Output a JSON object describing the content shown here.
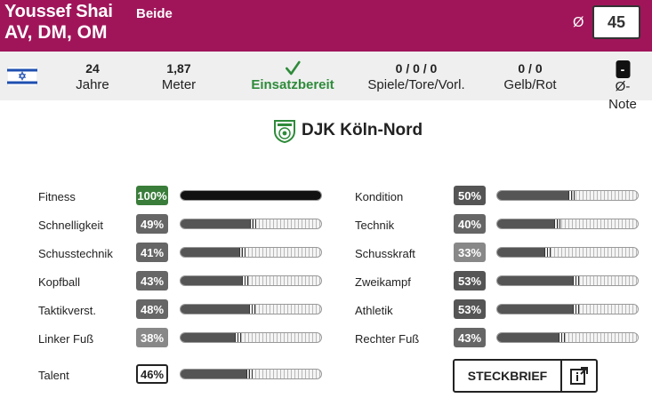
{
  "header": {
    "name": "Youssef Shai",
    "foot": "Beide",
    "positions": "AV, DM, OM",
    "avg_symbol": "Ø",
    "avg_value": "45"
  },
  "info": {
    "flag_icon": "israel-flag-icon",
    "age_value": "24",
    "age_label": "Jahre",
    "height_value": "1,87",
    "height_label": "Meter",
    "status_label": "Einsatzbereit",
    "games_value": "0 / 0 / 0",
    "games_label": "Spiele/Tore/Vorl.",
    "cards_value": "0 / 0",
    "cards_label": "Gelb/Rot",
    "note_value": "-",
    "note_label": "Ø-Note"
  },
  "club": {
    "name": "DJK Köln-Nord",
    "logo_icon": "club-crest-icon"
  },
  "stats_left": [
    {
      "label": "Fitness",
      "value": "100%",
      "pct": 100,
      "color": "#3a7d3a"
    },
    {
      "label": "Schnelligkeit",
      "value": "49%",
      "pct": 49,
      "color": "#666666"
    },
    {
      "label": "Schusstechnik",
      "value": "41%",
      "pct": 41,
      "color": "#666666"
    },
    {
      "label": "Kopfball",
      "value": "43%",
      "pct": 43,
      "color": "#666666"
    },
    {
      "label": "Taktikverst.",
      "value": "48%",
      "pct": 48,
      "color": "#666666"
    },
    {
      "label": "Linker Fuß",
      "value": "38%",
      "pct": 38,
      "color": "#888888"
    }
  ],
  "stats_right": [
    {
      "label": "Kondition",
      "value": "50%",
      "pct": 50,
      "color": "#555555"
    },
    {
      "label": "Technik",
      "value": "40%",
      "pct": 40,
      "color": "#666666"
    },
    {
      "label": "Schusskraft",
      "value": "33%",
      "pct": 33,
      "color": "#888888"
    },
    {
      "label": "Zweikampf",
      "value": "53%",
      "pct": 53,
      "color": "#555555"
    },
    {
      "label": "Athletik",
      "value": "53%",
      "pct": 53,
      "color": "#555555"
    },
    {
      "label": "Rechter Fuß",
      "value": "43%",
      "pct": 43,
      "color": "#666666"
    }
  ],
  "talent": {
    "label": "Talent",
    "value": "46%",
    "pct": 46
  },
  "steckbrief": {
    "label": "STECKBRIEF",
    "icon": "external-link-icon"
  }
}
